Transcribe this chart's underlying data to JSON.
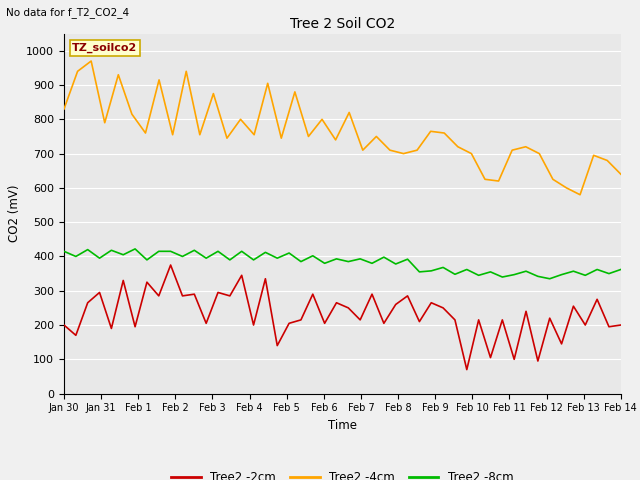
{
  "title": "Tree 2 Soil CO2",
  "no_data_label": "No data for f_T2_CO2_4",
  "box_label": "TZ_soilco2",
  "ylabel": "CO2 (mV)",
  "xlabel": "Time",
  "ylim": [
    0,
    1050
  ],
  "yticks": [
    0,
    100,
    200,
    300,
    400,
    500,
    600,
    700,
    800,
    900,
    1000
  ],
  "xtick_labels": [
    "Jan 30",
    "Jan 31",
    "Feb 1",
    "Feb 2",
    "Feb 3",
    "Feb 4",
    "Feb 5",
    "Feb 6",
    "Feb 7",
    "Feb 8",
    "Feb 9",
    "Feb 10",
    "Feb 11",
    "Feb 12",
    "Feb 13",
    "Feb 14"
  ],
  "legend_labels": [
    "Tree2 -2cm",
    "Tree2 -4cm",
    "Tree2 -8cm"
  ],
  "legend_colors": [
    "#cc0000",
    "#ffa500",
    "#00bb00"
  ],
  "bg_color": "#e8e8e8",
  "fig_bg_color": "#f0f0f0",
  "line_width": 1.2,
  "t2_2cm": [
    200,
    170,
    265,
    295,
    190,
    330,
    195,
    325,
    285,
    375,
    285,
    290,
    205,
    295,
    285,
    345,
    200,
    335,
    140,
    205,
    215,
    290,
    205,
    265,
    250,
    215,
    290,
    205,
    260,
    285,
    210,
    265,
    250,
    215,
    70,
    215,
    105,
    215,
    100,
    240,
    95,
    220,
    145,
    255,
    200,
    275,
    195,
    200
  ],
  "t2_4cm": [
    830,
    940,
    970,
    790,
    930,
    815,
    760,
    915,
    755,
    940,
    755,
    875,
    745,
    800,
    755,
    905,
    745,
    880,
    750,
    800,
    740,
    820,
    710,
    750,
    710,
    700,
    710,
    765,
    760,
    720,
    700,
    625,
    620,
    710,
    720,
    700,
    625,
    600,
    580,
    695,
    680,
    640
  ],
  "t2_8cm": [
    415,
    400,
    420,
    395,
    418,
    405,
    422,
    390,
    415,
    415,
    400,
    418,
    395,
    415,
    390,
    415,
    390,
    412,
    395,
    410,
    385,
    402,
    380,
    393,
    385,
    393,
    380,
    398,
    378,
    392,
    355,
    358,
    368,
    348,
    362,
    345,
    355,
    340,
    347,
    357,
    342,
    335,
    347,
    357,
    345,
    362,
    350,
    362
  ]
}
